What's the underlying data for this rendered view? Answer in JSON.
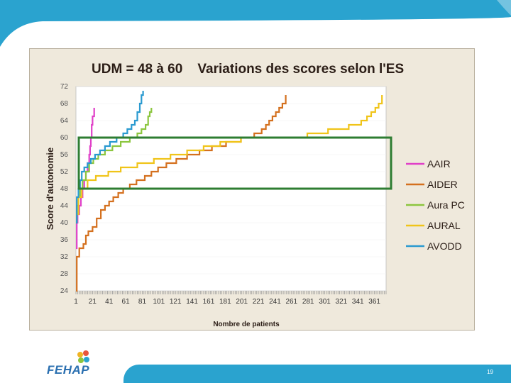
{
  "colors": {
    "top_band": "#2aa3cf",
    "bottom_bar": "#2aa3cf",
    "frame_bg": "#efe9dc",
    "highlight_box": "#2e7d32"
  },
  "footer": {
    "page_number": "19",
    "logo_text": "FEHAP"
  },
  "chart_data": {
    "type": "line",
    "title": "UDM = 48 à 60    Variations des scores selon l'ES",
    "xlabel": "Nombre de patients",
    "ylabel": "Score d'autonomie",
    "xlim": [
      1,
      375
    ],
    "ylim": [
      24,
      72
    ],
    "x_ticks": [
      "1",
      "21",
      "41",
      "61",
      "81",
      "101",
      "121",
      "141",
      "161",
      "181",
      "201",
      "221",
      "241",
      "261",
      "281",
      "301",
      "321",
      "341",
      "361"
    ],
    "y_ticks": [
      "24",
      "28",
      "32",
      "36",
      "40",
      "44",
      "48",
      "52",
      "56",
      "60",
      "64",
      "68",
      "72"
    ],
    "legend_position": "right",
    "highlight_band": [
      48,
      60
    ],
    "series": [
      {
        "name": "AAIR",
        "color": "#e040c8",
        "points": [
          [
            1,
            34
          ],
          [
            2,
            40
          ],
          [
            3,
            42
          ],
          [
            5,
            44
          ],
          [
            7,
            46
          ],
          [
            9,
            48
          ],
          [
            11,
            50
          ],
          [
            13,
            52
          ],
          [
            15,
            54
          ],
          [
            17,
            56
          ],
          [
            18,
            58
          ],
          [
            19,
            60
          ],
          [
            20,
            63
          ],
          [
            21,
            65
          ],
          [
            23,
            67
          ]
        ]
      },
      {
        "name": "AIDER",
        "color": "#d4701e",
        "points": [
          [
            1,
            24
          ],
          [
            2,
            32
          ],
          [
            5,
            34
          ],
          [
            10,
            35
          ],
          [
            13,
            37
          ],
          [
            16,
            38
          ],
          [
            21,
            39
          ],
          [
            26,
            41
          ],
          [
            31,
            43
          ],
          [
            36,
            44
          ],
          [
            41,
            45
          ],
          [
            46,
            46
          ],
          [
            52,
            47
          ],
          [
            58,
            48
          ],
          [
            66,
            49
          ],
          [
            74,
            50
          ],
          [
            84,
            51
          ],
          [
            92,
            52
          ],
          [
            100,
            53
          ],
          [
            110,
            54
          ],
          [
            122,
            55
          ],
          [
            135,
            56
          ],
          [
            150,
            57
          ],
          [
            165,
            58
          ],
          [
            182,
            59
          ],
          [
            200,
            60
          ],
          [
            216,
            61
          ],
          [
            225,
            62
          ],
          [
            230,
            63
          ],
          [
            234,
            64
          ],
          [
            238,
            65
          ],
          [
            242,
            66
          ],
          [
            246,
            67
          ],
          [
            250,
            68
          ],
          [
            254,
            70
          ]
        ]
      },
      {
        "name": "Aura PC",
        "color": "#8cc63f",
        "points": [
          [
            1,
            40
          ],
          [
            2,
            44
          ],
          [
            4,
            46
          ],
          [
            6,
            48
          ],
          [
            9,
            50
          ],
          [
            13,
            52
          ],
          [
            17,
            54
          ],
          [
            22,
            55
          ],
          [
            28,
            56
          ],
          [
            36,
            57
          ],
          [
            45,
            58
          ],
          [
            55,
            59
          ],
          [
            66,
            60
          ],
          [
            75,
            61
          ],
          [
            80,
            62
          ],
          [
            85,
            63
          ],
          [
            88,
            65
          ],
          [
            90,
            66
          ],
          [
            92,
            67
          ]
        ]
      },
      {
        "name": "AURAL",
        "color": "#f0c419",
        "points": [
          [
            1,
            42
          ],
          [
            4,
            46
          ],
          [
            8,
            48
          ],
          [
            15,
            50
          ],
          [
            25,
            51
          ],
          [
            40,
            52
          ],
          [
            55,
            53
          ],
          [
            75,
            54
          ],
          [
            95,
            55
          ],
          [
            115,
            56
          ],
          [
            135,
            57
          ],
          [
            155,
            58
          ],
          [
            175,
            59
          ],
          [
            200,
            60
          ],
          [
            250,
            60
          ],
          [
            280,
            61
          ],
          [
            305,
            62
          ],
          [
            330,
            63
          ],
          [
            345,
            64
          ],
          [
            352,
            65
          ],
          [
            357,
            66
          ],
          [
            362,
            67
          ],
          [
            366,
            68
          ],
          [
            370,
            70
          ]
        ]
      },
      {
        "name": "AVODD",
        "color": "#2a9ad0",
        "points": [
          [
            1,
            40
          ],
          [
            2,
            46
          ],
          [
            4,
            48
          ],
          [
            6,
            50
          ],
          [
            8,
            52
          ],
          [
            11,
            53
          ],
          [
            15,
            54
          ],
          [
            19,
            55
          ],
          [
            24,
            56
          ],
          [
            30,
            57
          ],
          [
            36,
            58
          ],
          [
            42,
            59
          ],
          [
            50,
            60
          ],
          [
            58,
            61
          ],
          [
            63,
            62
          ],
          [
            68,
            63
          ],
          [
            72,
            64
          ],
          [
            75,
            66
          ],
          [
            78,
            68
          ],
          [
            80,
            70
          ],
          [
            82,
            71
          ]
        ]
      }
    ]
  }
}
